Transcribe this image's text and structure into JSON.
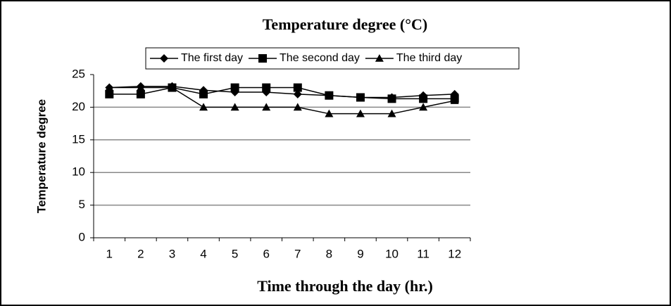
{
  "chart_data": {
    "type": "line",
    "title": "Temperature degree (°C)",
    "x_label": "Time through the day (hr.)",
    "y_label": "Temperature degree",
    "categories": [
      "1",
      "2",
      "3",
      "4",
      "5",
      "6",
      "7",
      "8",
      "9",
      "10",
      "11",
      "12"
    ],
    "series": [
      {
        "name": "The first day",
        "color": "#000000",
        "marker": "diamond",
        "values": [
          23,
          23.2,
          23.2,
          22.6,
          22.3,
          22.3,
          22,
          21.8,
          21.5,
          21.5,
          21.8,
          22
        ]
      },
      {
        "name": "The second day",
        "color": "#000000",
        "marker": "square",
        "values": [
          22,
          22,
          23,
          22,
          23,
          23,
          23,
          21.8,
          21.5,
          21.3,
          21.3,
          21.3
        ]
      },
      {
        "name": "The third day",
        "color": "#000000",
        "marker": "triangle",
        "values": [
          23,
          23,
          23,
          20,
          20,
          20,
          20,
          19,
          19,
          19,
          20,
          21
        ]
      }
    ],
    "ylim": [
      0,
      25
    ],
    "yticks": [
      0,
      5,
      10,
      15,
      20,
      25
    ],
    "grid": true,
    "legend": "top"
  }
}
